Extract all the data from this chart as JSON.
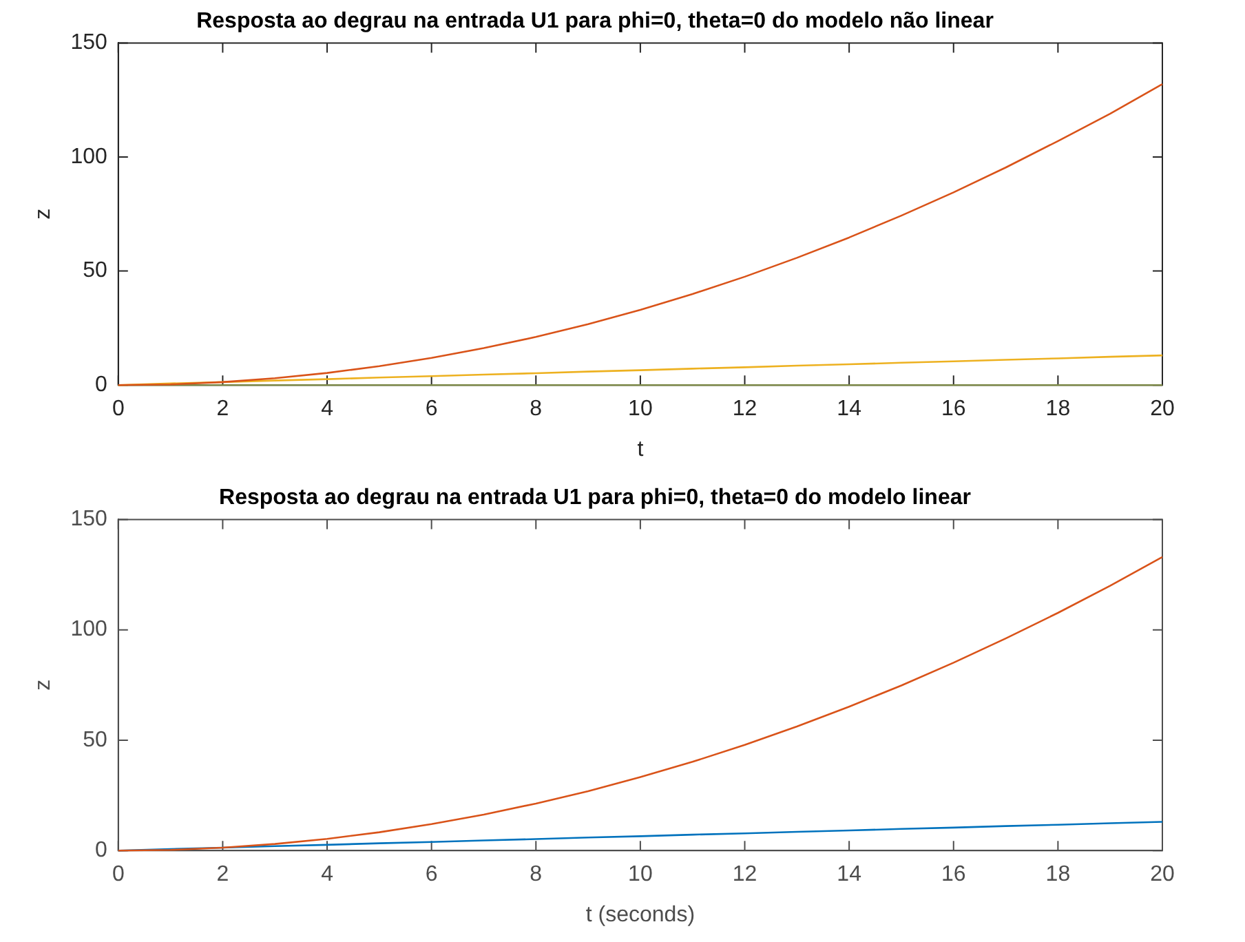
{
  "chart_data": [
    {
      "type": "line",
      "title": "Resposta ao degrau na entrada U1 para phi=0, theta=0 do modelo não linear",
      "xlabel": "t",
      "ylabel": "z",
      "x": [
        0,
        1,
        2,
        3,
        4,
        5,
        6,
        7,
        8,
        9,
        10,
        11,
        12,
        13,
        14,
        15,
        16,
        17,
        18,
        19,
        20
      ],
      "xlim": [
        0,
        20
      ],
      "xticks": [
        0,
        2,
        4,
        6,
        8,
        10,
        12,
        14,
        16,
        18,
        20
      ],
      "ylim": [
        0,
        150
      ],
      "yticks": [
        0,
        50,
        100,
        150
      ],
      "series": [
        {
          "color": "#d95319",
          "values": [
            0,
            0.3,
            1.3,
            3,
            5.3,
            8.3,
            11.9,
            16.2,
            21.1,
            26.7,
            33,
            39.9,
            47.5,
            55.8,
            64.7,
            74.3,
            84.5,
            95.4,
            107,
            119,
            132
          ]
        },
        {
          "color": "#edb120",
          "values": [
            0,
            0.7,
            1.3,
            2,
            2.6,
            3.3,
            3.9,
            4.6,
            5.2,
            5.9,
            6.5,
            7.2,
            7.8,
            8.5,
            9.1,
            9.8,
            10.4,
            11.1,
            11.7,
            12.4,
            13
          ]
        },
        {
          "color": "#7e8a4a",
          "values": [
            0,
            0,
            0,
            0,
            0,
            0,
            0,
            0,
            0,
            0,
            0,
            0,
            0,
            0,
            0,
            0,
            0,
            0,
            0,
            0,
            0
          ]
        }
      ],
      "grid": false,
      "legend": false
    },
    {
      "type": "line",
      "title": "Resposta ao degrau na entrada U1 para phi=0, theta=0 do modelo linear",
      "xlabel": "t (seconds)",
      "ylabel": "z",
      "x": [
        0,
        1,
        2,
        3,
        4,
        5,
        6,
        7,
        8,
        9,
        10,
        11,
        12,
        13,
        14,
        15,
        16,
        17,
        18,
        19,
        20
      ],
      "xlim": [
        0,
        20
      ],
      "xticks": [
        0,
        2,
        4,
        6,
        8,
        10,
        12,
        14,
        16,
        18,
        20
      ],
      "ylim": [
        0,
        150
      ],
      "yticks": [
        0,
        50,
        100,
        150
      ],
      "series": [
        {
          "color": "#d95319",
          "values": [
            0,
            0.3,
            1.3,
            3,
            5.3,
            8.3,
            12,
            16.3,
            21.3,
            26.9,
            33.3,
            40.2,
            47.9,
            56.2,
            65.2,
            74.8,
            85.1,
            96.1,
            107.7,
            120,
            133
          ]
        },
        {
          "color": "#0072bd",
          "values": [
            0,
            0.7,
            1.3,
            2,
            2.6,
            3.3,
            3.9,
            4.6,
            5.2,
            5.9,
            6.5,
            7.2,
            7.8,
            8.5,
            9.1,
            9.8,
            10.4,
            11.1,
            11.7,
            12.4,
            13
          ]
        }
      ],
      "grid": false,
      "legend": false
    }
  ]
}
